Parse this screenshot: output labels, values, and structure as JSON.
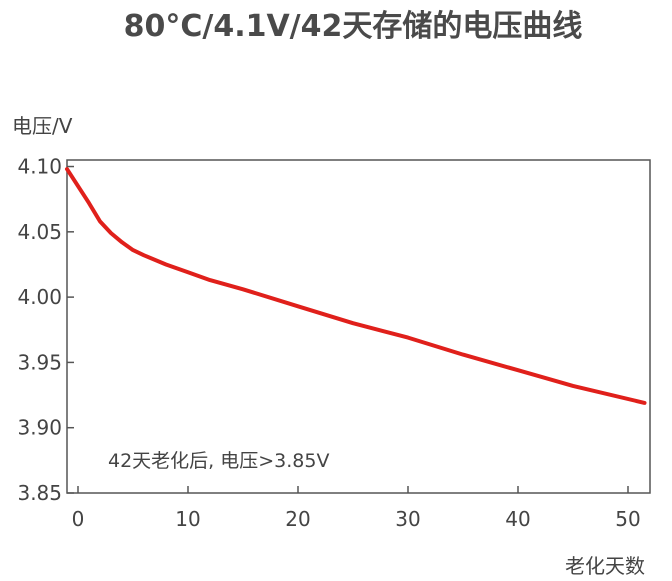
{
  "chart_data": {
    "type": "line",
    "title": "80°C/4.1V/42天存储的电压曲线",
    "ylabel": "电压/V",
    "xlabel": "老化天数",
    "xlim": [
      -1,
      52
    ],
    "ylim": [
      3.85,
      4.105
    ],
    "x_ticks": [
      0,
      10,
      20,
      30,
      40,
      50
    ],
    "y_ticks": [
      3.85,
      3.9,
      3.95,
      4.0,
      4.05,
      4.1
    ],
    "x_tick_labels": [
      "0",
      "10",
      "20",
      "30",
      "40",
      "50"
    ],
    "y_tick_labels": [
      "3.85",
      "3.90",
      "3.95",
      "4.00",
      "4.05",
      "4.10"
    ],
    "annotation": "42天老化后, 电压>3.85V",
    "grid": false,
    "series": [
      {
        "color": "#e0201b",
        "x": [
          -1,
          0,
          1,
          2,
          3,
          4,
          5,
          6,
          8,
          10,
          12,
          15,
          20,
          25,
          30,
          35,
          40,
          45,
          51.5
        ],
        "y": [
          4.098,
          4.085,
          4.072,
          4.058,
          4.049,
          4.042,
          4.036,
          4.032,
          4.025,
          4.019,
          4.013,
          4.006,
          3.993,
          3.98,
          3.969,
          3.956,
          3.944,
          3.932,
          3.919
        ]
      }
    ]
  }
}
